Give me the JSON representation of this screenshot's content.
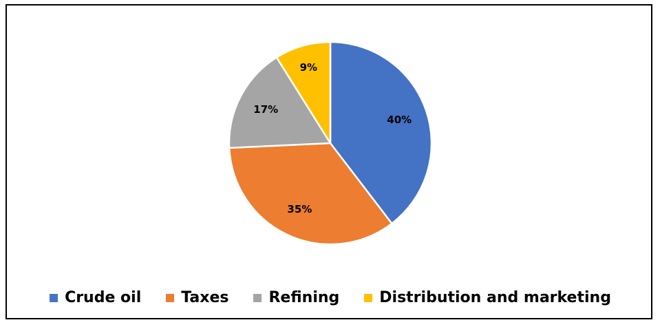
{
  "chart_data": {
    "type": "pie",
    "title": "",
    "slices": [
      {
        "name": "Crude oil",
        "value": 40,
        "label": "40%",
        "color": "#4472C4"
      },
      {
        "name": "Taxes",
        "value": 35,
        "label": "35%",
        "color": "#ED7D31"
      },
      {
        "name": "Refining",
        "value": 17,
        "label": "17%",
        "color": "#A5A5A5"
      },
      {
        "name": "Distribution and marketing",
        "value": 9,
        "label": "9%",
        "color": "#FFC000"
      }
    ],
    "legend_position": "bottom",
    "start_angle": "top",
    "direction": "clockwise"
  }
}
